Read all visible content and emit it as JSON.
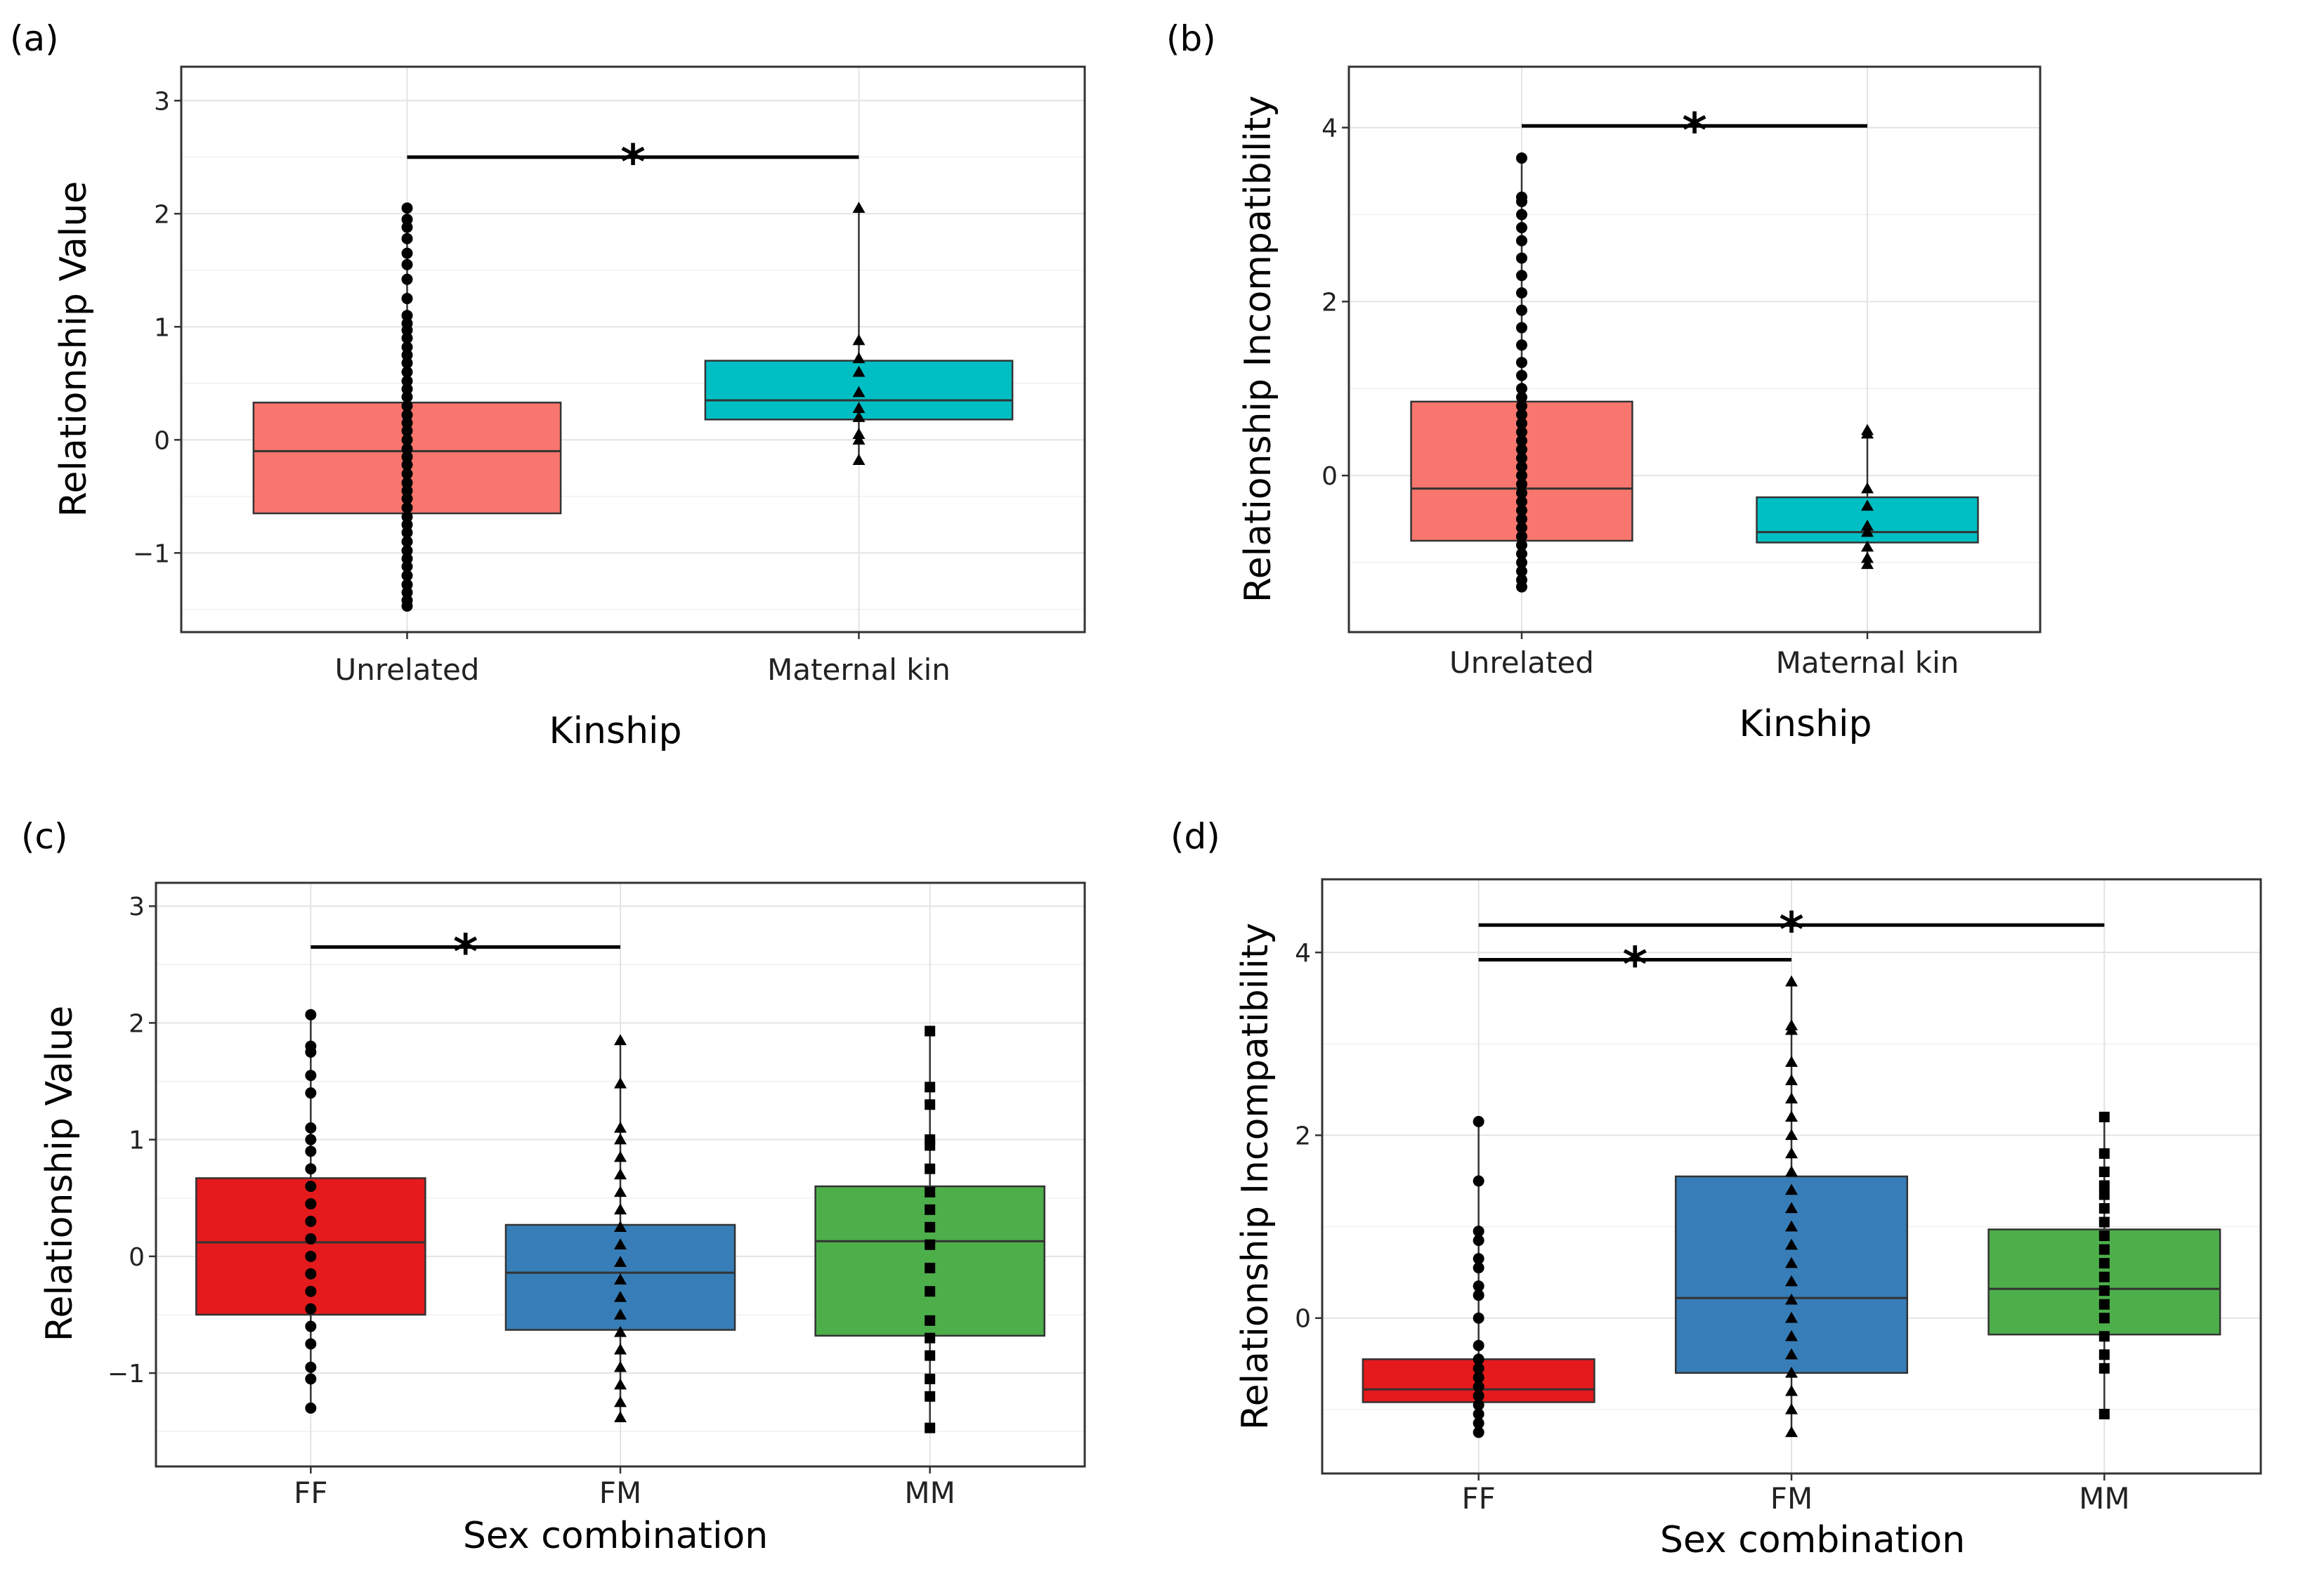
{
  "chart_data": [
    {
      "panel_label": "(a)",
      "type": "boxplot",
      "xlabel": "Kinship",
      "ylabel": "Relationship Value",
      "ylim": [
        -1.7,
        3.3
      ],
      "yticks": [
        -1,
        0,
        1,
        2,
        3
      ],
      "yticklabels": [
        "−1",
        "0",
        "1",
        "2",
        "3"
      ],
      "categories": [
        "Unrelated",
        "Maternal kin"
      ],
      "series": [
        {
          "name": "Unrelated",
          "color": "#F8766D",
          "marker": "circle",
          "q1": -0.65,
          "median": -0.1,
          "q3": 0.33,
          "min": -1.47,
          "max": 2.05,
          "points": [
            -1.47,
            -1.42,
            -1.35,
            -1.28,
            -1.2,
            -1.12,
            -1.05,
            -0.98,
            -0.9,
            -0.82,
            -0.75,
            -0.68,
            -0.6,
            -0.52,
            -0.45,
            -0.38,
            -0.3,
            -0.22,
            -0.15,
            -0.08,
            0.0,
            0.08,
            0.15,
            0.22,
            0.3,
            0.38,
            0.45,
            0.52,
            0.6,
            0.68,
            0.75,
            0.82,
            0.9,
            0.97,
            1.03,
            1.1,
            1.25,
            1.42,
            1.55,
            1.65,
            1.78,
            1.88,
            1.95,
            2.05
          ]
        },
        {
          "name": "Maternal kin",
          "color": "#00BFC4",
          "marker": "triangle",
          "q1": 0.18,
          "median": 0.35,
          "q3": 0.7,
          "min": -0.18,
          "max": 2.05,
          "points": [
            -0.18,
            0.0,
            0.05,
            0.2,
            0.28,
            0.42,
            0.6,
            0.72,
            0.88,
            2.05
          ]
        }
      ],
      "significance": [
        {
          "from": 0,
          "to": 1,
          "y": 2.5,
          "label": "*"
        }
      ]
    },
    {
      "panel_label": "(b)",
      "type": "boxplot",
      "xlabel": "Kinship",
      "ylabel": "Relationship Incompatibility",
      "ylim": [
        -1.8,
        4.7
      ],
      "yticks": [
        0,
        2,
        4
      ],
      "yticklabels": [
        "0",
        "2",
        "4"
      ],
      "categories": [
        "Unrelated",
        "Maternal kin"
      ],
      "series": [
        {
          "name": "Unrelated",
          "color": "#F8766D",
          "marker": "circle",
          "q1": -0.75,
          "median": -0.15,
          "q3": 0.85,
          "min": -1.28,
          "max": 3.65,
          "points": [
            -1.28,
            -1.2,
            -1.1,
            -1.0,
            -0.9,
            -0.8,
            -0.7,
            -0.6,
            -0.5,
            -0.4,
            -0.3,
            -0.2,
            -0.1,
            0.0,
            0.1,
            0.2,
            0.3,
            0.4,
            0.5,
            0.6,
            0.7,
            0.8,
            0.9,
            1.0,
            1.15,
            1.3,
            1.5,
            1.7,
            1.9,
            2.1,
            2.3,
            2.5,
            2.7,
            2.85,
            3.0,
            3.15,
            3.2,
            3.65
          ]
        },
        {
          "name": "Maternal kin",
          "color": "#00BFC4",
          "marker": "triangle",
          "q1": -0.77,
          "median": -0.65,
          "q3": -0.25,
          "min": -1.02,
          "max": 0.52,
          "points": [
            -1.02,
            -0.95,
            -0.82,
            -0.65,
            -0.58,
            -0.35,
            -0.15,
            0.48,
            0.52
          ]
        }
      ],
      "significance": [
        {
          "from": 0,
          "to": 1,
          "y": 4.02,
          "label": "*"
        }
      ]
    },
    {
      "panel_label": "(c)",
      "type": "boxplot",
      "xlabel": "Sex combination",
      "ylabel": "Relationship Value",
      "ylim": [
        -1.8,
        3.2
      ],
      "yticks": [
        -1,
        0,
        1,
        2,
        3
      ],
      "yticklabels": [
        "−1",
        "0",
        "1",
        "2",
        "3"
      ],
      "categories": [
        "FF",
        "FM",
        "MM"
      ],
      "series": [
        {
          "name": "FF",
          "color": "#E41A1C",
          "marker": "circle",
          "q1": -0.5,
          "median": 0.12,
          "q3": 0.67,
          "min": -1.3,
          "max": 2.07,
          "points": [
            -1.3,
            -1.05,
            -0.95,
            -0.75,
            -0.6,
            -0.45,
            -0.3,
            -0.15,
            0.0,
            0.15,
            0.3,
            0.45,
            0.6,
            0.75,
            0.9,
            1.0,
            1.1,
            1.4,
            1.55,
            1.75,
            1.8,
            2.07
          ]
        },
        {
          "name": "FM",
          "color": "#377EB8",
          "marker": "triangle",
          "q1": -0.63,
          "median": -0.14,
          "q3": 0.27,
          "min": -1.38,
          "max": 1.85,
          "points": [
            -1.38,
            -1.25,
            -1.1,
            -0.95,
            -0.8,
            -0.65,
            -0.5,
            -0.35,
            -0.2,
            -0.05,
            0.1,
            0.25,
            0.4,
            0.55,
            0.7,
            0.85,
            1.0,
            1.1,
            1.48,
            1.85
          ]
        },
        {
          "name": "MM",
          "color": "#4DAF4A",
          "marker": "square",
          "q1": -0.68,
          "median": 0.13,
          "q3": 0.6,
          "min": -1.47,
          "max": 1.93,
          "points": [
            -1.47,
            -1.2,
            -1.05,
            -0.85,
            -0.7,
            -0.55,
            -0.3,
            -0.1,
            0.1,
            0.25,
            0.4,
            0.55,
            0.75,
            0.95,
            1.0,
            1.3,
            1.45,
            1.93
          ]
        }
      ],
      "significance": [
        {
          "from": 0,
          "to": 1,
          "y": 2.65,
          "label": "*"
        }
      ]
    },
    {
      "panel_label": "(d)",
      "type": "boxplot",
      "xlabel": "Sex combination",
      "ylabel": "Relationship Incompatibility",
      "ylim": [
        -1.7,
        4.8
      ],
      "yticks": [
        0,
        2,
        4
      ],
      "yticklabels": [
        "0",
        "2",
        "4"
      ],
      "categories": [
        "FF",
        "FM",
        "MM"
      ],
      "series": [
        {
          "name": "FF",
          "color": "#E41A1C",
          "marker": "circle",
          "q1": -0.92,
          "median": -0.78,
          "q3": -0.45,
          "min": -1.25,
          "max": 2.15,
          "points": [
            -1.25,
            -1.15,
            -1.05,
            -0.95,
            -0.85,
            -0.75,
            -0.65,
            -0.55,
            -0.45,
            -0.3,
            0.0,
            0.25,
            0.35,
            0.55,
            0.65,
            0.85,
            0.95,
            1.5,
            2.15
          ]
        },
        {
          "name": "FM",
          "color": "#377EB8",
          "marker": "triangle",
          "q1": -0.6,
          "median": 0.22,
          "q3": 1.55,
          "min": -1.25,
          "max": 3.68,
          "points": [
            -1.25,
            -1.0,
            -0.8,
            -0.6,
            -0.4,
            -0.2,
            0.0,
            0.2,
            0.4,
            0.6,
            0.8,
            1.0,
            1.2,
            1.4,
            1.6,
            1.8,
            2.0,
            2.2,
            2.4,
            2.6,
            2.8,
            3.15,
            3.2,
            3.68
          ]
        },
        {
          "name": "MM",
          "color": "#4DAF4A",
          "marker": "square",
          "q1": -0.18,
          "median": 0.32,
          "q3": 0.97,
          "min": -1.05,
          "max": 2.2,
          "points": [
            -1.05,
            -0.55,
            -0.4,
            -0.2,
            0.0,
            0.15,
            0.3,
            0.45,
            0.6,
            0.75,
            0.9,
            1.05,
            1.2,
            1.35,
            1.45,
            1.6,
            1.8,
            2.2
          ]
        }
      ],
      "significance": [
        {
          "from": 0,
          "to": 1,
          "y": 3.92,
          "label": "*"
        },
        {
          "from": 0,
          "to": 2,
          "y": 4.3,
          "label": "*"
        }
      ]
    }
  ]
}
